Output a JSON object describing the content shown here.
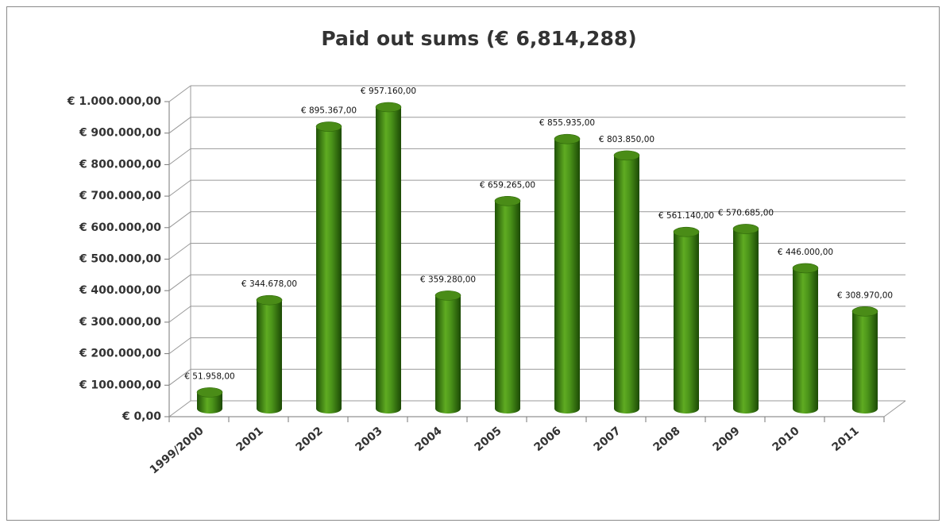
{
  "chart_data": {
    "type": "bar3d",
    "title": "Paid out sums (€ 6,814,288)",
    "categories": [
      "1999/2000",
      "2001",
      "2002",
      "2003",
      "2004",
      "2005",
      "2006",
      "2007",
      "2008",
      "2009",
      "2010",
      "2011"
    ],
    "values": [
      51958,
      344678,
      895367,
      957160,
      359280,
      659265,
      855935,
      803850,
      561140,
      570685,
      446000,
      308970
    ],
    "value_labels": [
      "€ 51.958,00",
      "€ 344.678,00",
      "€ 895.367,00",
      "€ 957.160,00",
      "€ 359.280,00",
      "€ 659.265,00",
      "€ 855.935,00",
      "€ 803.850,00",
      "€ 561.140,00",
      "€ 570.685,00",
      "€ 446.000,00",
      "€ 308.970,00"
    ],
    "color": "#3f7f12",
    "ylim": [
      0,
      1000000
    ],
    "yticks": [
      {
        "value": 0,
        "label": "€ 0,00"
      },
      {
        "value": 100000,
        "label": "€ 100.000,00"
      },
      {
        "value": 200000,
        "label": "€ 200.000,00"
      },
      {
        "value": 300000,
        "label": "€ 300.000,00"
      },
      {
        "value": 400000,
        "label": "€ 400.000,00"
      },
      {
        "value": 500000,
        "label": "€ 500.000,00"
      },
      {
        "value": 600000,
        "label": "€ 600.000,00"
      },
      {
        "value": 700000,
        "label": "€ 700.000,00"
      },
      {
        "value": 800000,
        "label": "€ 800.000,00"
      },
      {
        "value": 900000,
        "label": "€ 900.000,00"
      },
      {
        "value": 1000000,
        "label": "€ 1.000.000,00"
      }
    ],
    "grid": true
  }
}
